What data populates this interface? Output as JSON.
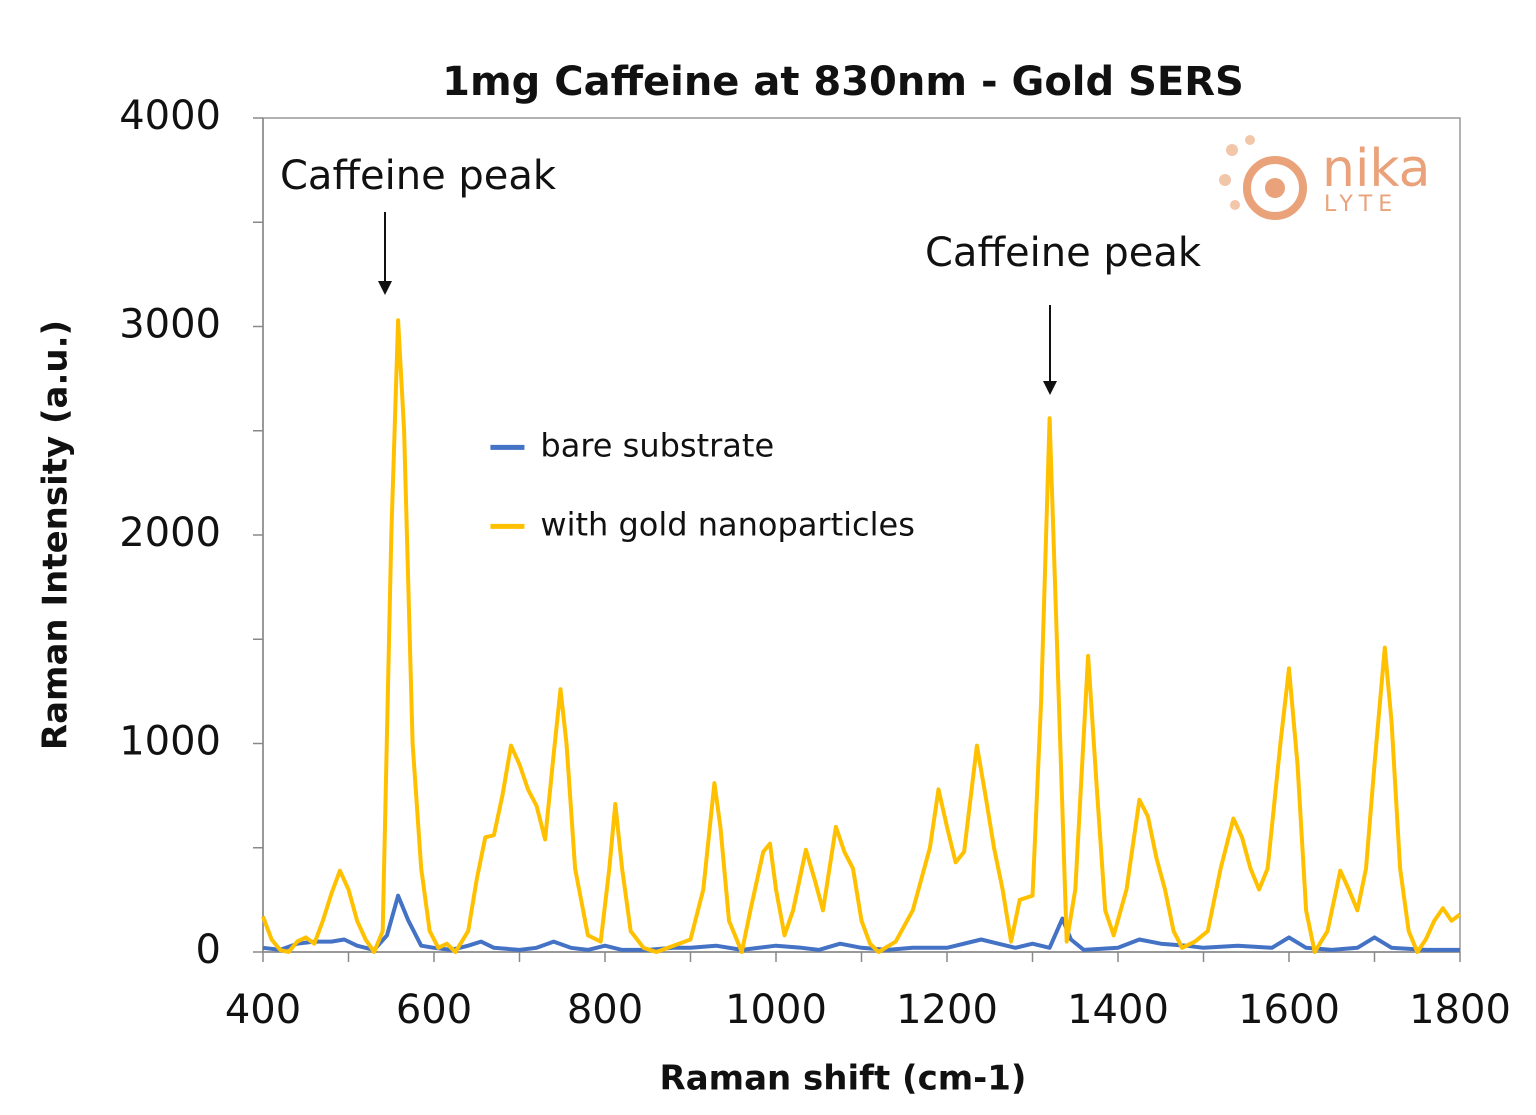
{
  "chart_data": {
    "type": "line",
    "title": "1mg Caffeine at 830nm - Gold SERS",
    "x_label": "Raman shift  (cm-1)",
    "y_label": "Raman Intensity (a.u.)",
    "xlim": [
      400,
      1800
    ],
    "xticks": [
      400,
      600,
      800,
      1000,
      1200,
      1400,
      1600,
      1800
    ],
    "ylim": [
      0,
      4000
    ],
    "yticks": [
      0,
      1000,
      2000,
      3000,
      4000
    ],
    "legend": "center",
    "annotations": [
      "Caffeine peak",
      "Caffeine peak"
    ],
    "logo": {
      "name": "nika",
      "sub": "LYTE"
    },
    "series": [
      {
        "name": "bare substrate",
        "color": "#4472c4",
        "x": [
          400,
          420,
          440,
          460,
          480,
          495,
          510,
          530,
          545,
          558,
          570,
          585,
          600,
          620,
          640,
          655,
          670,
          700,
          720,
          740,
          760,
          780,
          800,
          820,
          850,
          880,
          900,
          930,
          960,
          1000,
          1030,
          1050,
          1075,
          1100,
          1130,
          1160,
          1200,
          1240,
          1260,
          1280,
          1300,
          1320,
          1335,
          1345,
          1360,
          1400,
          1425,
          1450,
          1480,
          1500,
          1540,
          1580,
          1600,
          1620,
          1650,
          1680,
          1700,
          1720,
          1760,
          1800
        ],
        "values": [
          20,
          10,
          40,
          50,
          50,
          60,
          30,
          10,
          80,
          270,
          150,
          30,
          20,
          10,
          30,
          50,
          20,
          10,
          20,
          50,
          20,
          10,
          30,
          10,
          10,
          20,
          20,
          30,
          10,
          30,
          20,
          10,
          40,
          20,
          10,
          20,
          20,
          60,
          40,
          20,
          40,
          20,
          160,
          60,
          10,
          20,
          60,
          40,
          30,
          20,
          30,
          20,
          70,
          20,
          10,
          20,
          70,
          20,
          10,
          10
        ]
      },
      {
        "name": "with gold nanoparticles",
        "color": "#ffc000",
        "x": [
          400,
          410,
          420,
          430,
          440,
          450,
          460,
          470,
          480,
          490,
          500,
          510,
          520,
          530,
          540,
          550,
          558,
          565,
          575,
          585,
          595,
          605,
          615,
          625,
          640,
          650,
          660,
          670,
          680,
          690,
          700,
          710,
          720,
          730,
          740,
          748,
          755,
          765,
          780,
          795,
          805,
          812,
          820,
          830,
          845,
          860,
          880,
          900,
          915,
          928,
          935,
          945,
          960,
          970,
          985,
          993,
          1000,
          1010,
          1020,
          1035,
          1045,
          1055,
          1070,
          1080,
          1090,
          1100,
          1110,
          1120,
          1140,
          1160,
          1180,
          1190,
          1200,
          1210,
          1220,
          1235,
          1245,
          1255,
          1265,
          1275,
          1285,
          1300,
          1310,
          1320,
          1330,
          1340,
          1350,
          1365,
          1375,
          1385,
          1395,
          1410,
          1425,
          1435,
          1445,
          1455,
          1465,
          1475,
          1490,
          1505,
          1520,
          1535,
          1545,
          1555,
          1565,
          1575,
          1590,
          1600,
          1610,
          1620,
          1630,
          1645,
          1660,
          1670,
          1680,
          1690,
          1700,
          1712,
          1720,
          1730,
          1740,
          1750,
          1760,
          1770,
          1780,
          1790,
          1800
        ],
        "values": [
          170,
          60,
          10,
          0,
          50,
          70,
          40,
          150,
          280,
          390,
          300,
          150,
          60,
          0,
          100,
          2000,
          3030,
          2500,
          1000,
          400,
          100,
          20,
          40,
          0,
          100,
          350,
          550,
          560,
          750,
          990,
          900,
          780,
          700,
          540,
          950,
          1260,
          1000,
          400,
          80,
          50,
          400,
          710,
          400,
          100,
          20,
          0,
          30,
          60,
          300,
          810,
          600,
          150,
          0,
          200,
          480,
          520,
          300,
          80,
          200,
          490,
          350,
          200,
          600,
          480,
          400,
          150,
          40,
          0,
          50,
          200,
          500,
          780,
          600,
          430,
          480,
          990,
          750,
          500,
          300,
          50,
          250,
          270,
          1200,
          2560,
          1300,
          50,
          300,
          1420,
          800,
          200,
          80,
          300,
          730,
          650,
          450,
          300,
          100,
          20,
          50,
          100,
          400,
          640,
          550,
          400,
          300,
          400,
          1000,
          1360,
          900,
          200,
          0,
          100,
          390,
          300,
          200,
          400,
          900,
          1460,
          1100,
          400,
          100,
          0,
          60,
          150,
          210,
          150,
          180
        ]
      }
    ]
  }
}
